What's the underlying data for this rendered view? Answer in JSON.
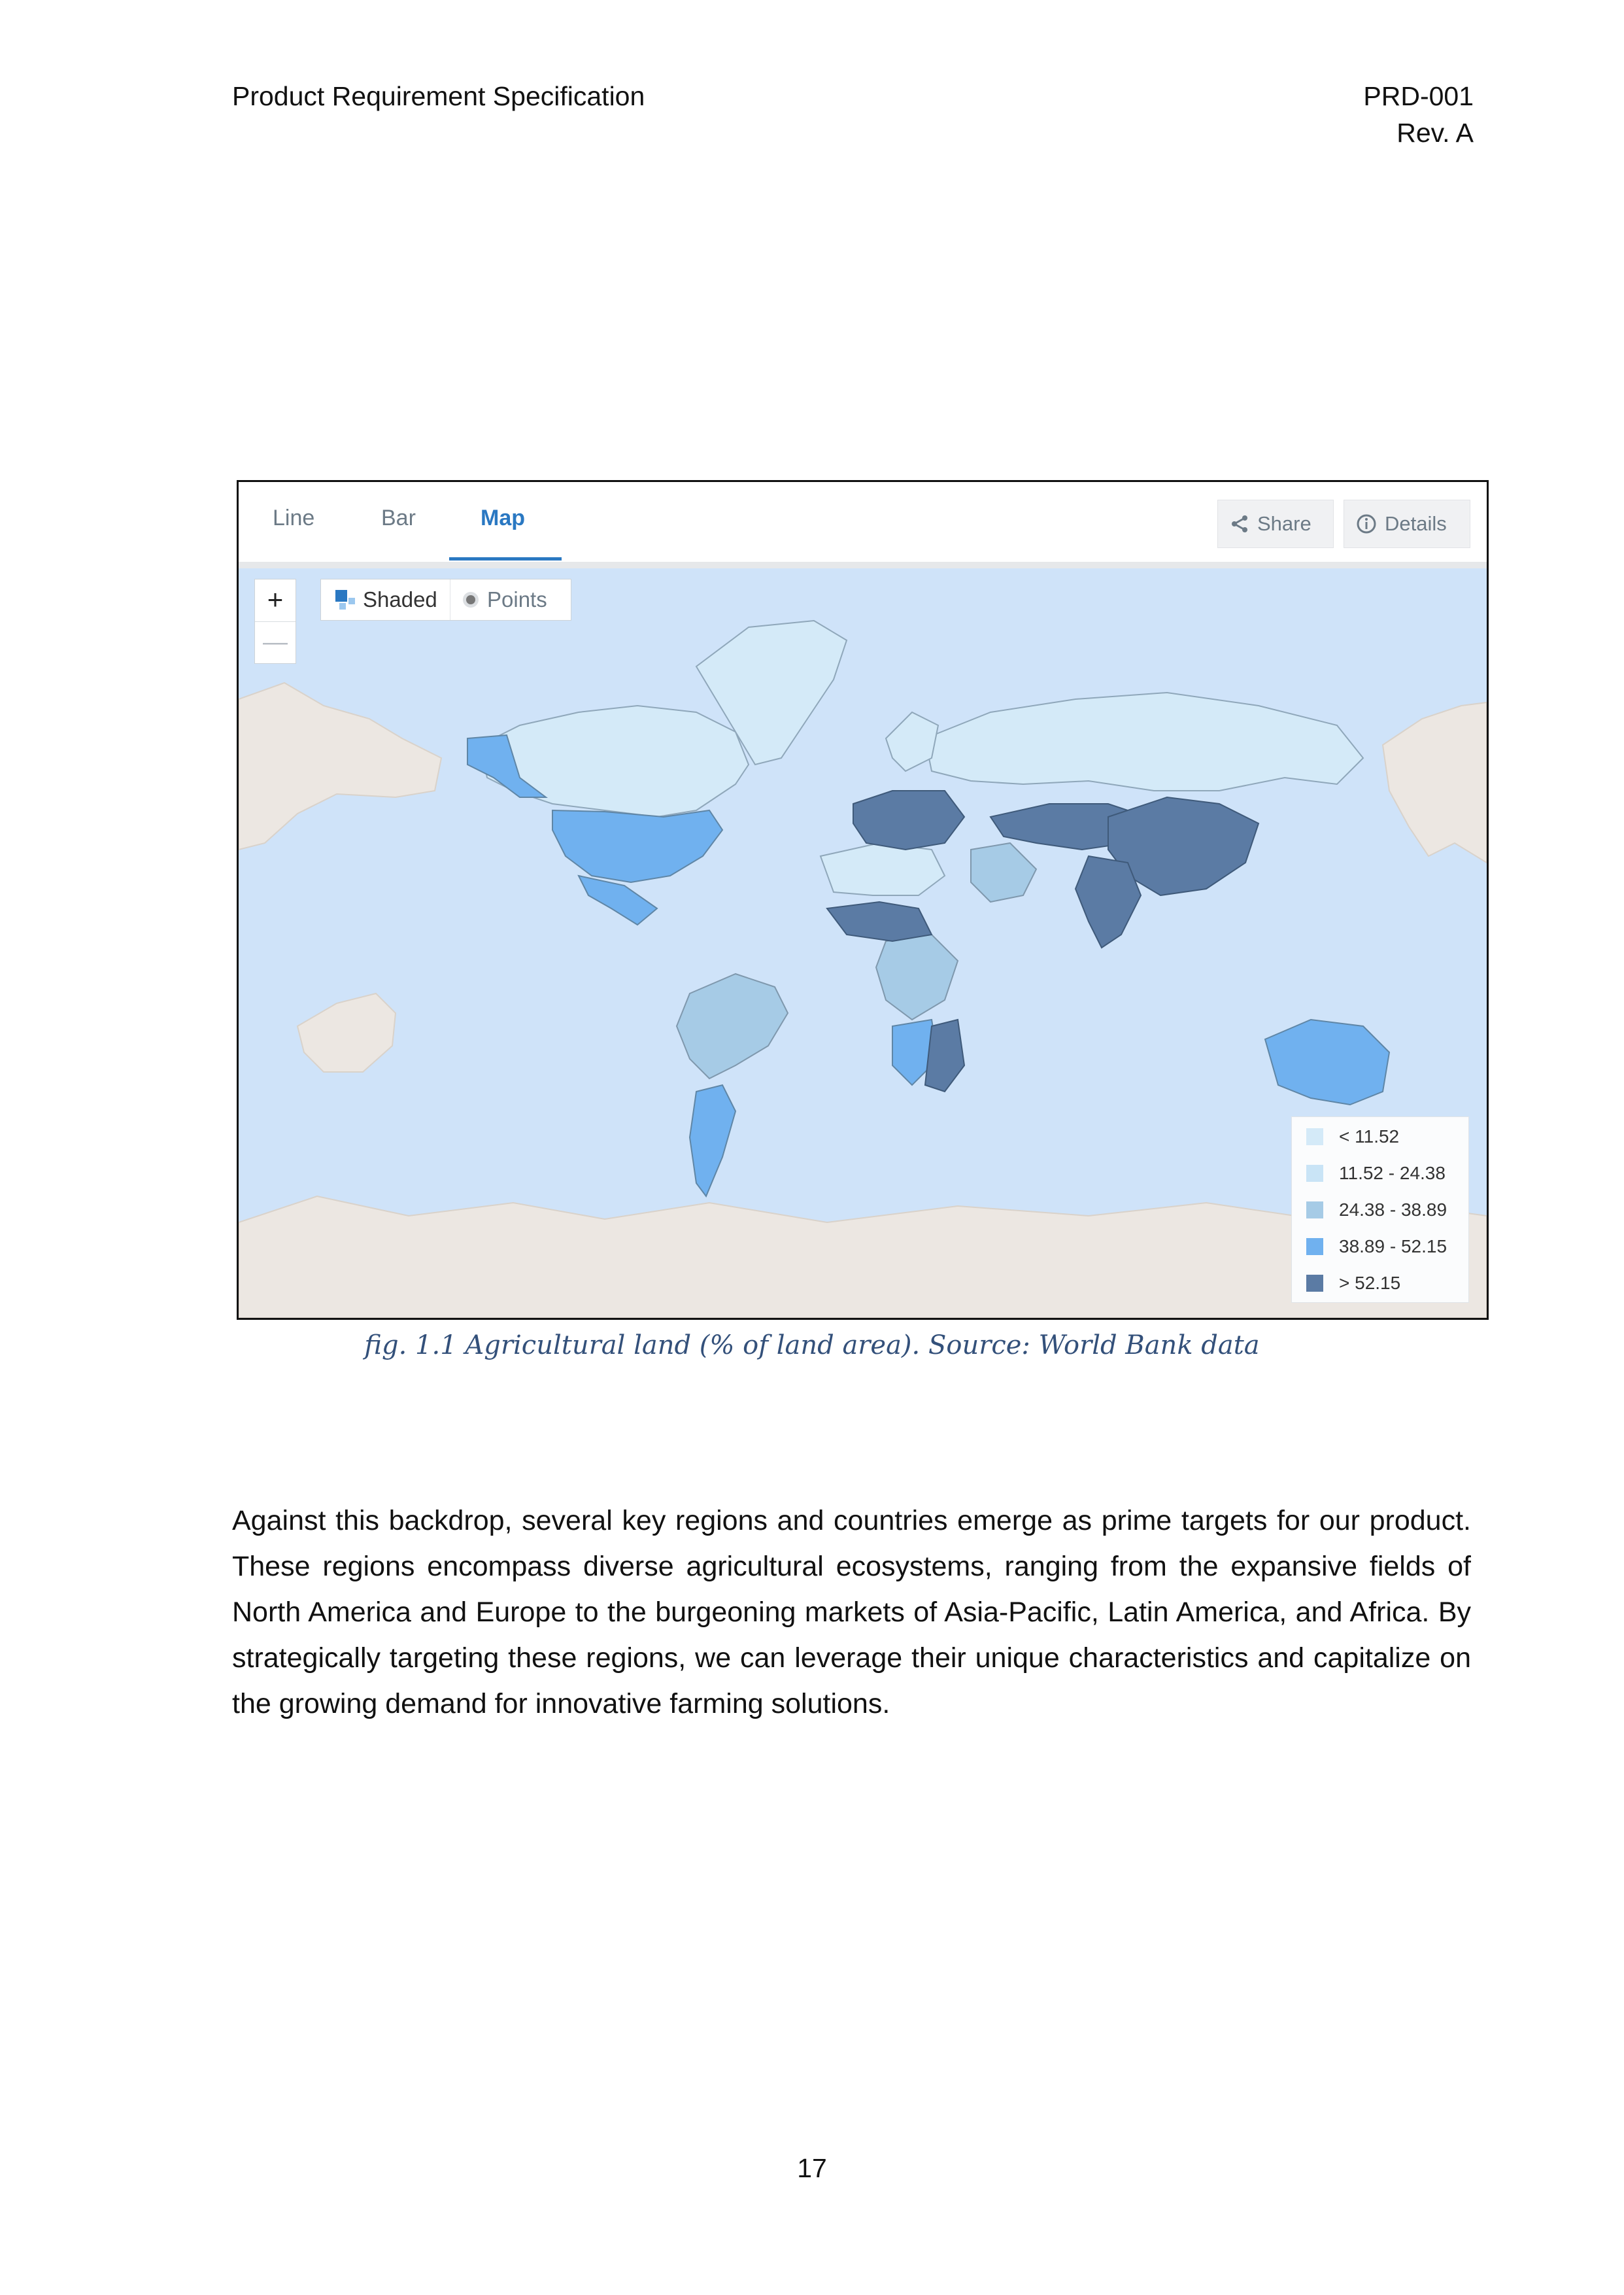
{
  "header": {
    "title": "Product Requirement Specification",
    "doc_id": "PRD-001",
    "revision": "Rev. A"
  },
  "figure": {
    "tabs": [
      {
        "label": "Line",
        "active": false
      },
      {
        "label": "Bar",
        "active": false
      },
      {
        "label": "Map",
        "active": true
      }
    ],
    "share_label": "Share",
    "details_label": "Details",
    "zoom_in_label": "+",
    "zoom_out_label": "—",
    "mode_shaded_label": "Shaded",
    "mode_points_label": "Points",
    "icons": [
      "share-icon",
      "info-icon",
      "shaded-icon",
      "points-icon"
    ],
    "legend": [
      {
        "label": "< 11.52",
        "color": "#d4eaf8"
      },
      {
        "label": "11.52 - 24.38",
        "color": "#c9e4f6"
      },
      {
        "label": "24.38 - 38.89",
        "color": "#a6cbe6"
      },
      {
        "label": "38.89 - 52.15",
        "color": "#70b1ef"
      },
      {
        "label": "> 52.15",
        "color": "#5b7ba4"
      }
    ],
    "colors": {
      "ocean": "#cfe3f9",
      "land_no_data": "#ece7e2",
      "accent": "#2a78c2"
    }
  },
  "caption": "fig. 1.1  Agricultural land (% of land area). Source: World Bank data",
  "body": "Against this backdrop, several key regions and countries emerge as prime targets for our product. These regions encompass diverse agricultural ecosystems, ranging from the expansive fields of North America and Europe to the burgeoning markets of Asia-Pacific, Latin America, and Africa. By strategically targeting these regions, we can leverage their unique characteristics and capitalize on the growing demand for innovative farming solutions.",
  "page_number": "17"
}
